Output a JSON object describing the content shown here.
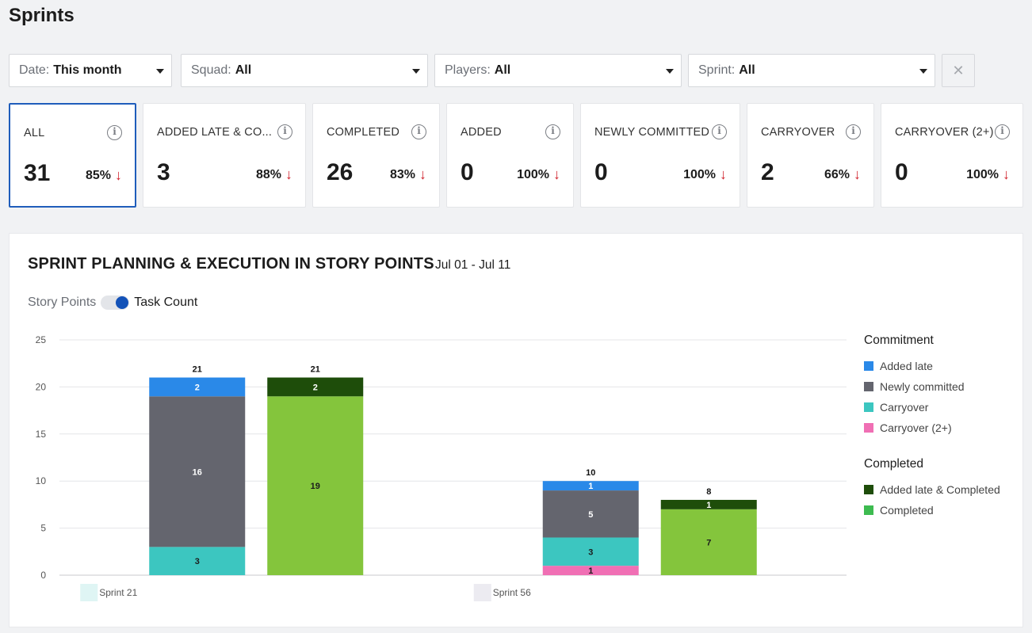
{
  "page": {
    "title": "Sprints"
  },
  "filters": [
    {
      "label": "Date:",
      "value": "This month"
    },
    {
      "label": "Squad:",
      "value": "All"
    },
    {
      "label": "Players:",
      "value": "All"
    },
    {
      "label": "Sprint:",
      "value": "All"
    }
  ],
  "clear_icon": "close-icon",
  "cards": [
    {
      "title": "ALL",
      "value": "31",
      "pct": "85%"
    },
    {
      "title": "ADDED LATE & CO...",
      "value": "3",
      "pct": "88%"
    },
    {
      "title": "COMPLETED",
      "value": "26",
      "pct": "83%"
    },
    {
      "title": "ADDED",
      "value": "0",
      "pct": "100%"
    },
    {
      "title": "NEWLY COMMITTED",
      "value": "0",
      "pct": "100%"
    },
    {
      "title": "CARRYOVER",
      "value": "2",
      "pct": "66%"
    },
    {
      "title": "CARRYOVER (2+)",
      "value": "0",
      "pct": "100%"
    }
  ],
  "card_arrow": "↓",
  "info_glyph": "i",
  "panel": {
    "title": "SPRINT PLANNING & EXECUTION IN STORY POINTS",
    "range": "Jul 01 - Jul 11",
    "toggle_left": "Story Points",
    "toggle_right": "Task Count"
  },
  "legend": {
    "commitment_title": "Commitment",
    "commitment_items": [
      {
        "label": "Added late",
        "color": "#2a89e8"
      },
      {
        "label": "Newly committed",
        "color": "#64656e"
      },
      {
        "label": "Carryover",
        "color": "#3cc6c0"
      },
      {
        "label": "Carryover (2+)",
        "color": "#f06fb4"
      }
    ],
    "completed_title": "Completed",
    "completed_items": [
      {
        "label": "Added late & Completed",
        "color": "#1e4d0a"
      },
      {
        "label": "Completed",
        "color": "#3dbb50"
      }
    ]
  },
  "chart_data": {
    "type": "bar",
    "stacked": true,
    "categories": [
      "Sprint 21",
      "Sprint 56"
    ],
    "ylim": [
      0,
      25
    ],
    "yticks": [
      0,
      5,
      10,
      15,
      20,
      25
    ],
    "grid": true,
    "legend_position": "right",
    "groups": [
      {
        "category": "Sprint 21",
        "bars": [
          {
            "total": 21,
            "segments": [
              {
                "series": "Carryover",
                "value": 3,
                "color": "#3cc6c0",
                "label_color": "#1c1c1c"
              },
              {
                "series": "Newly committed",
                "value": 16,
                "color": "#64656e",
                "label_color": "#ffffff"
              },
              {
                "series": "Added late",
                "value": 2,
                "color": "#2a89e8",
                "label_color": "#ffffff"
              }
            ]
          },
          {
            "total": 21,
            "segments": [
              {
                "series": "Completed",
                "value": 19,
                "color": "#84c53c",
                "label_color": "#1c1c1c"
              },
              {
                "series": "Added late & Completed",
                "value": 2,
                "color": "#1e4d0a",
                "label_color": "#ffffff"
              }
            ]
          }
        ]
      },
      {
        "category": "Sprint 56",
        "bars": [
          {
            "total": 10,
            "segments": [
              {
                "series": "Carryover (2+)",
                "value": 1,
                "color": "#f06fb4",
                "label_color": "#1c1c1c"
              },
              {
                "series": "Carryover",
                "value": 3,
                "color": "#3cc6c0",
                "label_color": "#1c1c1c"
              },
              {
                "series": "Newly committed",
                "value": 5,
                "color": "#64656e",
                "label_color": "#ffffff"
              },
              {
                "series": "Added late",
                "value": 1,
                "color": "#2a89e8",
                "label_color": "#ffffff"
              }
            ]
          },
          {
            "total": 8,
            "segments": [
              {
                "series": "Completed",
                "value": 7,
                "color": "#84c53c",
                "label_color": "#1c1c1c"
              },
              {
                "series": "Added late & Completed",
                "value": 1,
                "color": "#1e4d0a",
                "label_color": "#ffffff"
              }
            ]
          }
        ]
      }
    ],
    "category_chip_colors": [
      "#dff5f4",
      "#ecebf1"
    ]
  }
}
